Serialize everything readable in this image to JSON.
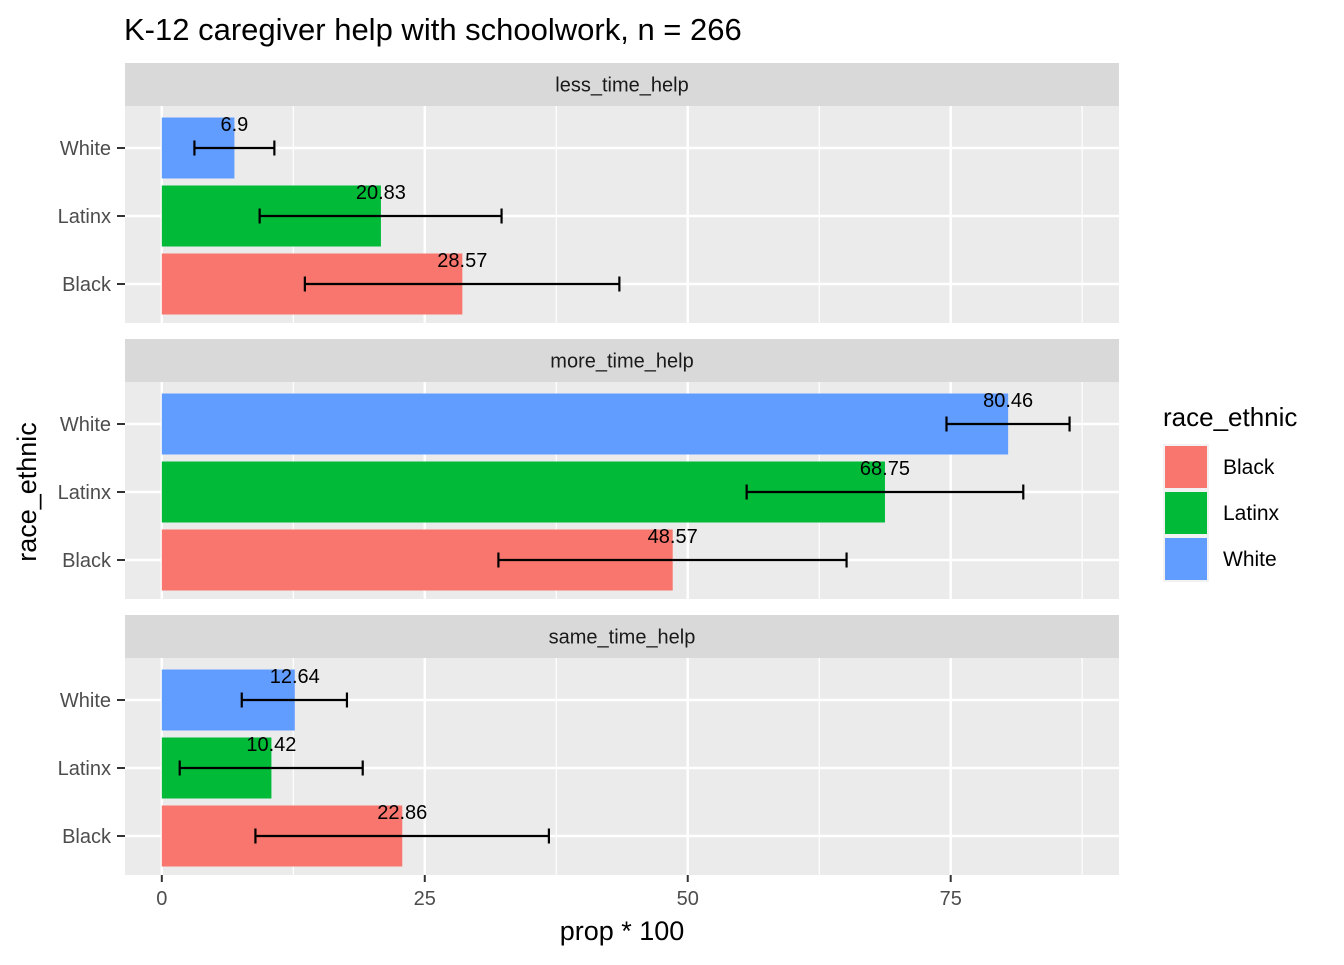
{
  "chart_data": {
    "type": "bar",
    "orientation": "horizontal",
    "title": "K-12 caregiver help with schoolwork, n = 266",
    "xlabel": "prop * 100",
    "ylabel": "race_ethnic",
    "xlim": [
      -3.5,
      91
    ],
    "xticks": [
      0,
      25,
      50,
      75
    ],
    "categories": [
      "White",
      "Latinx",
      "Black"
    ],
    "legend": {
      "title": "race_ethnic",
      "position": "right",
      "entries": [
        {
          "name": "Black",
          "color": "#F8766D"
        },
        {
          "name": "Latinx",
          "color": "#00BA38"
        },
        {
          "name": "White",
          "color": "#619CFF"
        }
      ]
    },
    "facets": [
      {
        "name": "less_time_help",
        "bars": [
          {
            "category": "White",
            "value": 6.9,
            "label": "6.9",
            "ci": [
              3.1,
              10.7
            ]
          },
          {
            "category": "Latinx",
            "value": 20.83,
            "label": "20.83",
            "ci": [
              9.3,
              32.3
            ]
          },
          {
            "category": "Black",
            "value": 28.57,
            "label": "28.57",
            "ci": [
              13.6,
              43.5
            ]
          }
        ]
      },
      {
        "name": "more_time_help",
        "bars": [
          {
            "category": "White",
            "value": 80.46,
            "label": "80.46",
            "ci": [
              74.6,
              86.3
            ]
          },
          {
            "category": "Latinx",
            "value": 68.75,
            "label": "68.75",
            "ci": [
              55.6,
              81.9
            ]
          },
          {
            "category": "Black",
            "value": 48.57,
            "label": "48.57",
            "ci": [
              32.0,
              65.1
            ]
          }
        ]
      },
      {
        "name": "same_time_help",
        "bars": [
          {
            "category": "White",
            "value": 12.64,
            "label": "12.64",
            "ci": [
              7.6,
              17.6
            ]
          },
          {
            "category": "Latinx",
            "value": 10.42,
            "label": "10.42",
            "ci": [
              1.7,
              19.1
            ]
          },
          {
            "category": "Black",
            "value": 22.86,
            "label": "22.86",
            "ci": [
              8.9,
              36.8
            ]
          }
        ]
      }
    ]
  }
}
